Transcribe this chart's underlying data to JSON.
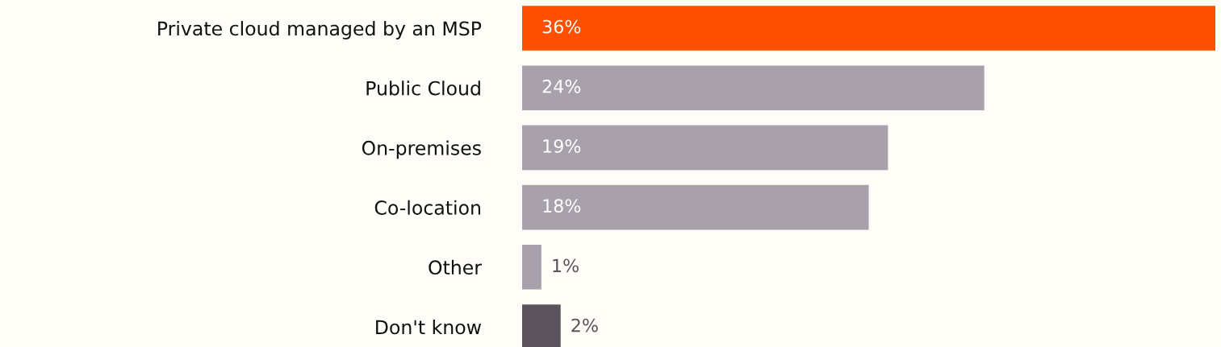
{
  "chart_data": {
    "type": "bar",
    "orientation": "horizontal",
    "categories": [
      "Private cloud managed by an MSP",
      "Public Cloud",
      "On-premises",
      "Co-location",
      "Other",
      "Don't know"
    ],
    "values": [
      36,
      24,
      19,
      18,
      1,
      2
    ],
    "value_labels": [
      "36%",
      "24%",
      "19%",
      "18%",
      "1%",
      "2%"
    ],
    "colors": [
      "#ff4f00",
      "#a8a1ac",
      "#a8a1ac",
      "#a8a1ac",
      "#a8a1ac",
      "#5a535b"
    ],
    "grid": false,
    "legend": false
  }
}
